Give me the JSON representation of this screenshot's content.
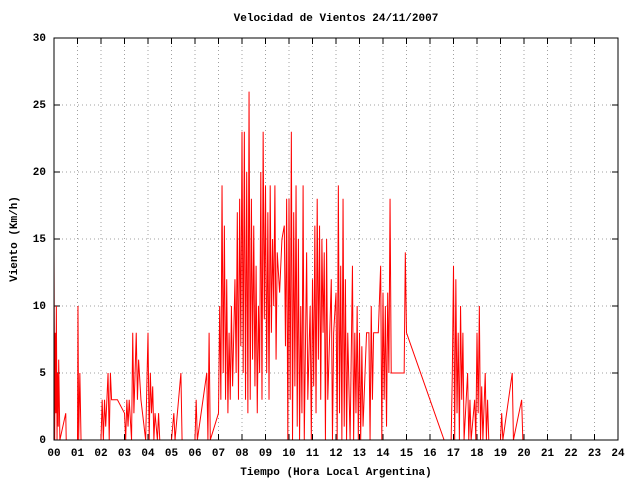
{
  "chart_data": {
    "type": "line",
    "title": "Velocidad de Vientos 24/11/2007",
    "x_label": "Tiempo (Hora Local Argentina)",
    "y_label": "Viento (Km/h)",
    "color": "#ff0000",
    "grid": true,
    "xlim": [
      0,
      24
    ],
    "ylim": [
      0,
      30
    ],
    "xticks": [
      {
        "value": 0,
        "label": "00"
      },
      {
        "value": 1,
        "label": "01"
      },
      {
        "value": 2,
        "label": "02"
      },
      {
        "value": 3,
        "label": "03"
      },
      {
        "value": 4,
        "label": "04"
      },
      {
        "value": 5,
        "label": "05"
      },
      {
        "value": 6,
        "label": "06"
      },
      {
        "value": 7,
        "label": "07"
      },
      {
        "value": 8,
        "label": "08"
      },
      {
        "value": 9,
        "label": "09"
      },
      10,
      11,
      12,
      13,
      14,
      15,
      16,
      17,
      18,
      19,
      20,
      21,
      22,
      23,
      24
    ],
    "yticks": [
      0,
      5,
      10,
      15,
      20,
      25,
      30
    ],
    "x": [
      0,
      0.03,
      0.05,
      0.08,
      0.1,
      0.13,
      0.15,
      0.18,
      0.2,
      0.25,
      0.5,
      0.52,
      1,
      1.02,
      1.05,
      1.1,
      1.15,
      2,
      2.05,
      2.1,
      2.15,
      2.2,
      2.3,
      2.35,
      2.4,
      2.45,
      2.7,
      3,
      3.05,
      3.1,
      3.15,
      3.2,
      3.3,
      3.35,
      3.4,
      3.5,
      3.55,
      3.6,
      3.7,
      3.9,
      4,
      4.05,
      4.1,
      4.15,
      4.2,
      4.25,
      4.3,
      4.4,
      4.45,
      4.5,
      5,
      5.1,
      5.15,
      5.4,
      5.45,
      6,
      6.05,
      6.1,
      6.5,
      6.55,
      6.6,
      6.65,
      7,
      7.05,
      7.1,
      7.15,
      7.2,
      7.25,
      7.3,
      7.35,
      7.4,
      7.45,
      7.5,
      7.55,
      7.6,
      7.7,
      7.75,
      7.8,
      7.85,
      7.9,
      7.95,
      8,
      8.05,
      8.1,
      8.15,
      8.2,
      8.25,
      8.3,
      8.35,
      8.4,
      8.45,
      8.5,
      8.55,
      8.6,
      8.65,
      8.7,
      8.75,
      8.8,
      8.85,
      8.9,
      8.95,
      9,
      9.05,
      9.1,
      9.15,
      9.2,
      9.25,
      9.3,
      9.35,
      9.4,
      9.45,
      9.5,
      9.6,
      9.7,
      9.8,
      9.85,
      9.9,
      9.95,
      10,
      10.05,
      10.1,
      10.15,
      10.2,
      10.25,
      10.3,
      10.35,
      10.4,
      10.45,
      10.5,
      10.55,
      10.6,
      10.65,
      10.75,
      10.8,
      10.9,
      10.95,
      11,
      11.05,
      11.1,
      11.15,
      11.2,
      11.25,
      11.3,
      11.35,
      11.4,
      11.45,
      11.5,
      11.55,
      11.6,
      11.65,
      11.8,
      11.85,
      11.9,
      12,
      12.05,
      12.1,
      12.15,
      12.2,
      12.25,
      12.3,
      12.35,
      12.4,
      12.45,
      12.5,
      12.6,
      12.7,
      12.75,
      12.8,
      12.85,
      12.9,
      12.95,
      13,
      13.05,
      13.1,
      13.15,
      13.3,
      13.4,
      13.45,
      13.5,
      13.55,
      13.6,
      13.8,
      13.9,
      13.95,
      14,
      14.05,
      14.1,
      14.15,
      14.2,
      14.25,
      14.3,
      14.35,
      14.4,
      14.9,
      14.95,
      15,
      16.6,
      16.9,
      16.95,
      17,
      17.05,
      17.1,
      17.15,
      17.2,
      17.25,
      17.3,
      17.35,
      17.4,
      17.45,
      17.6,
      17.65,
      17.7,
      17.75,
      17.9,
      17.95,
      18,
      18.05,
      18.1,
      18.15,
      18.2,
      18.25,
      18.35,
      18.4,
      18.45,
      18.5,
      19,
      19.05,
      19.1,
      19.5,
      19.55,
      19.9,
      19.95
    ],
    "values": [
      14,
      0,
      8,
      2,
      10,
      0,
      5,
      1,
      6,
      0,
      2,
      0,
      0,
      10,
      0,
      5,
      0,
      0,
      3,
      0,
      3,
      1,
      5,
      0,
      5,
      3,
      3,
      2,
      0,
      3,
      1,
      3,
      0,
      8,
      2,
      8,
      3,
      6,
      3,
      0,
      8,
      0,
      5,
      2,
      4,
      0,
      2,
      0,
      2,
      0,
      0,
      2,
      0,
      5,
      0,
      0,
      3,
      0,
      5,
      0,
      8,
      0,
      2,
      10,
      3,
      19,
      5,
      16,
      3,
      12,
      2,
      8,
      3,
      10,
      4,
      12,
      5,
      17,
      3,
      18,
      7,
      23,
      5,
      23,
      3,
      20,
      2,
      26,
      3,
      18,
      6,
      16,
      4,
      13,
      2,
      10,
      5,
      20,
      3,
      23,
      9,
      19,
      5,
      17,
      3,
      19,
      8,
      15,
      10,
      19,
      6,
      14,
      11,
      15,
      16,
      7,
      18,
      0,
      18,
      3,
      23,
      0,
      17,
      4,
      19,
      1,
      15,
      0,
      10,
      2,
      19,
      0,
      14,
      3,
      10,
      0,
      12,
      4,
      16,
      2,
      18,
      6,
      16,
      3,
      15,
      8,
      14,
      0,
      15,
      3,
      12,
      0,
      8,
      11,
      0,
      19,
      2,
      13,
      0,
      18,
      1,
      12,
      0,
      8,
      0,
      13,
      0,
      8,
      2,
      10,
      0,
      8,
      0,
      7,
      1,
      8,
      8,
      0,
      10,
      3,
      8,
      8,
      13,
      0,
      11,
      3,
      10,
      1,
      11,
      5,
      18,
      5,
      5,
      5,
      14,
      8,
      0,
      0,
      5,
      13,
      0,
      12,
      2,
      8,
      0,
      10,
      3,
      8,
      0,
      5,
      0,
      3,
      0,
      3,
      0,
      8,
      2,
      10,
      0,
      4,
      0,
      5,
      0,
      3,
      0,
      0,
      2,
      0,
      5,
      0,
      3,
      0
    ]
  }
}
